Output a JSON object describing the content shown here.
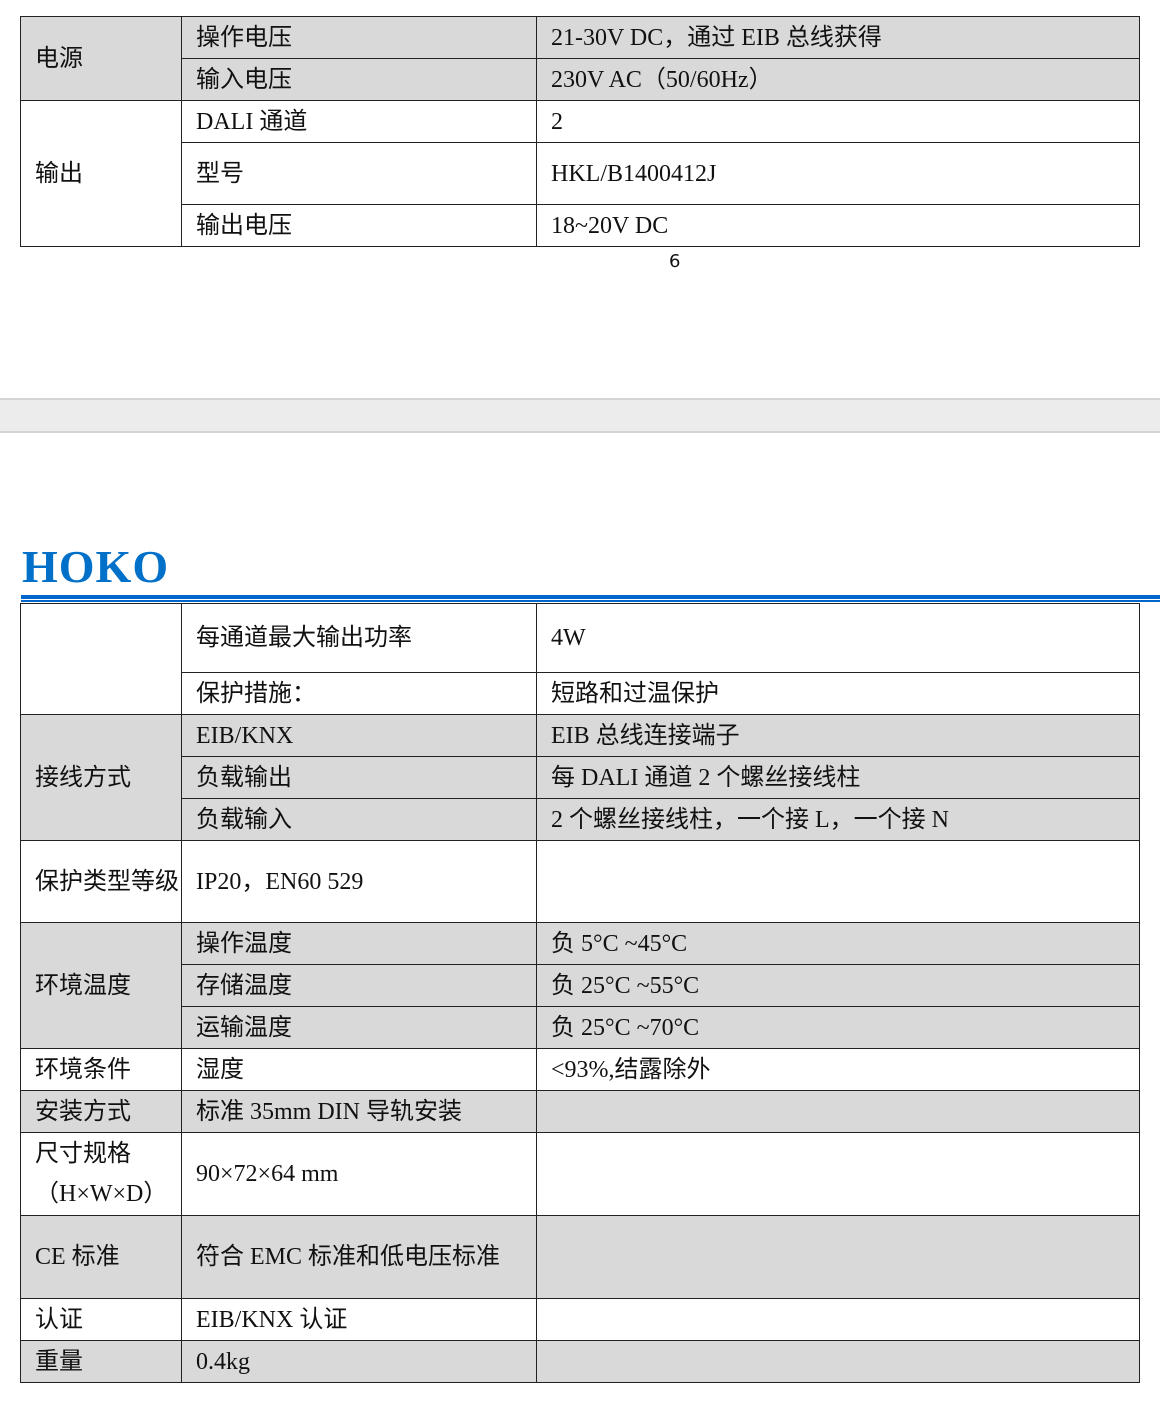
{
  "colors": {
    "brand": "#0070c8",
    "rule": "#0066cc",
    "shade": "#d9d9d9"
  },
  "page_number": "6",
  "logo": "HOKO",
  "table1": [
    {
      "cells": [
        {
          "text": "电源",
          "rowspan": 2,
          "shade": true
        },
        {
          "text": "操作电压",
          "shade": true
        },
        {
          "text": "21-30V DC，通过 EIB  总线获得",
          "shade": true
        }
      ],
      "h": 42
    },
    {
      "cells": [
        {
          "text": "输入电压",
          "shade": true
        },
        {
          "text": "230V AC（50/60Hz）",
          "shade": true
        }
      ],
      "h": 42
    },
    {
      "cells": [
        {
          "text": "输出",
          "rowspan": 3
        },
        {
          "text": "DALI 通道"
        },
        {
          "text": "2"
        }
      ],
      "h": 42
    },
    {
      "cells": [
        {
          "text": "型号"
        },
        {
          "text": "HKL/B1400412J"
        }
      ],
      "h": 62
    },
    {
      "cells": [
        {
          "text": "输出电压"
        },
        {
          "text": "18~20V DC"
        }
      ],
      "h": 42
    }
  ],
  "table2": [
    {
      "cells": [
        {
          "text": "",
          "rowspan": 2
        },
        {
          "text": "每通道最大输出功率"
        },
        {
          "text": "4W"
        }
      ],
      "h": 69
    },
    {
      "cells": [
        {
          "text": "保护措施："
        },
        {
          "text": "短路和过温保护"
        }
      ],
      "h": 42
    },
    {
      "cells": [
        {
          "text": "接线方式",
          "rowspan": 3,
          "shade": true
        },
        {
          "text": "EIB/KNX",
          "shade": true
        },
        {
          "text": "EIB 总线连接端子",
          "shade": true
        }
      ],
      "h": 42
    },
    {
      "cells": [
        {
          "text": "负载输出",
          "shade": true
        },
        {
          "text": "每 DALI 通道 2  个螺丝接线柱",
          "shade": true
        }
      ],
      "h": 42
    },
    {
      "cells": [
        {
          "text": "负载输入",
          "shade": true
        },
        {
          "text": "2  个螺丝接线柱，一个接 L，一个接 N",
          "shade": true
        }
      ],
      "h": 42
    },
    {
      "cells": [
        {
          "text": "保护类型等级"
        },
        {
          "text": "IP20，EN60 529"
        },
        {
          "text": ""
        }
      ],
      "h": 82
    },
    {
      "cells": [
        {
          "text": "环境温度",
          "rowspan": 3,
          "shade": true
        },
        {
          "text": "操作温度",
          "shade": true
        },
        {
          "text": "负 5°C ~45°C",
          "shade": true
        }
      ],
      "h": 42
    },
    {
      "cells": [
        {
          "text": "存储温度",
          "shade": true
        },
        {
          "text": "负 25°C ~55°C",
          "shade": true
        }
      ],
      "h": 42
    },
    {
      "cells": [
        {
          "text": "运输温度",
          "shade": true
        },
        {
          "text": "负 25°C ~70°C",
          "shade": true
        }
      ],
      "h": 42
    },
    {
      "cells": [
        {
          "text": "环境条件"
        },
        {
          "text": "湿度"
        },
        {
          "text": "<93%,结露除外"
        }
      ],
      "h": 42
    },
    {
      "cells": [
        {
          "text": "安装方式",
          "shade": true
        },
        {
          "text": "标准 35mm DIN  导轨安装",
          "shade": true
        },
        {
          "text": "",
          "shade": true
        }
      ],
      "h": 42
    },
    {
      "cells": [
        {
          "text": "尺寸规格（H×W×D）"
        },
        {
          "text": "90×72×64 mm"
        },
        {
          "text": ""
        }
      ],
      "h": 83
    },
    {
      "cells": [
        {
          "text": "CE 标准",
          "shade": true
        },
        {
          "text": "符合 EMC  标准和低电压标准",
          "shade": true
        },
        {
          "text": "",
          "shade": true
        }
      ],
      "h": 83
    },
    {
      "cells": [
        {
          "text": "认证"
        },
        {
          "text": "EIB/KNX  认证"
        },
        {
          "text": ""
        }
      ],
      "h": 42
    },
    {
      "cells": [
        {
          "text": "重量",
          "shade": true
        },
        {
          "text": "0.4kg",
          "shade": true
        },
        {
          "text": "",
          "shade": true
        }
      ],
      "h": 42
    }
  ]
}
